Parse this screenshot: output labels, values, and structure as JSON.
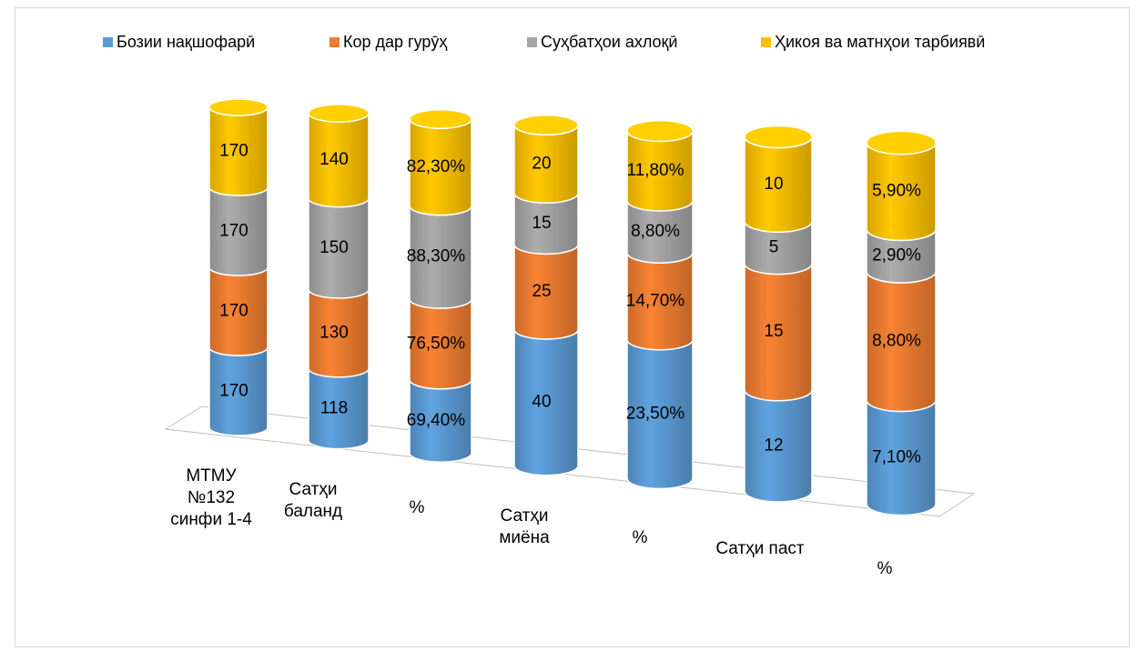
{
  "chart_data": {
    "type": "bar3d_cylinder",
    "stacking": "percent",
    "categories": [
      "МТМУ №132 синфи 1-4",
      "Сатҳи баланд",
      "%",
      "Сатҳи миёна",
      "%",
      "Сатҳи паст",
      "%"
    ],
    "series": [
      {
        "name": "Бозии нақшофарӣ",
        "color": "#5b9bd5",
        "values": [
          170,
          118,
          69.4,
          40,
          23.5,
          12,
          7.1
        ],
        "value_labels": [
          "170",
          "118",
          "69,40%",
          "40",
          "23,50%",
          "12",
          "7,10%"
        ]
      },
      {
        "name": "Кор дар гурӯҳ",
        "color": "#ed7d31",
        "values": [
          170,
          130,
          76.5,
          25,
          14.7,
          15,
          8.8
        ],
        "value_labels": [
          "170",
          "130",
          "76,50%",
          "25",
          "14,70%",
          "15",
          "8,80%"
        ]
      },
      {
        "name": "Суҳбатҳои ахлоқӣ",
        "color": "#a5a5a5",
        "values": [
          170,
          150,
          88.3,
          15,
          8.8,
          5,
          2.9
        ],
        "value_labels": [
          "170",
          "150",
          "88,30%",
          "15",
          "8,80%",
          "5",
          "2,90%"
        ]
      },
      {
        "name": "Ҳикоя ва матнҳои тарбиявӣ",
        "color": "#ffc000",
        "values": [
          170,
          140,
          82.3,
          20,
          11.8,
          10,
          5.9
        ],
        "value_labels": [
          "170",
          "140",
          "82,30%",
          "20",
          "11,80%",
          "10",
          "5,90%"
        ]
      }
    ],
    "legend": "top"
  }
}
